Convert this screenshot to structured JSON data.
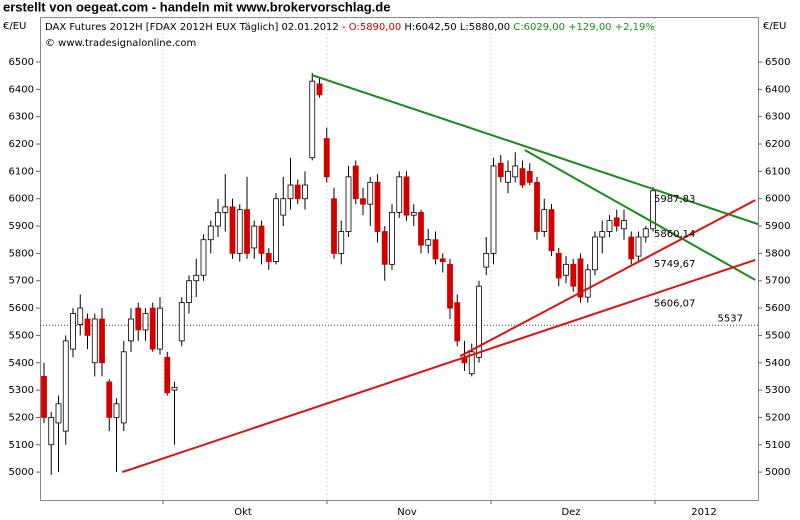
{
  "header": {
    "banner": "erstellt von oegeat.com - handeln mit www.brokervorschlag.de"
  },
  "chart_data": {
    "type": "candlestick",
    "legend": {
      "name": "DAX Futures 2012H [FDAX 2012H EUX  Täglich] 02.01.2012 -",
      "open": "O:5890,00",
      "high": "H:6042,50",
      "low": "L:5880,00",
      "close": "C:6029,00 +129,00 +2,19%"
    },
    "copyright": "© www.tradesignalonline.com",
    "y_unit": "€/EU",
    "xlabels": [
      "Okt",
      "Nov",
      "Dez",
      "2012"
    ],
    "ylim": [
      4898,
      6661
    ],
    "yticks": [
      5000,
      5100,
      5200,
      5300,
      5400,
      5500,
      5600,
      5700,
      5800,
      5900,
      6000,
      6100,
      6200,
      6300,
      6400,
      6500
    ],
    "up_color": "#ffffff",
    "down_color": "#d40000",
    "open": [
      5350,
      5100,
      5180,
      5150,
      5450,
      5540,
      5560,
      5400,
      5560,
      5330,
      5200,
      5180,
      5480,
      5600,
      5520,
      5600,
      5450,
      5420,
      5300,
      5480,
      5620,
      5700,
      5720,
      5850,
      5900,
      5950,
      5970,
      5800,
      5960,
      5820,
      5900,
      5800,
      5770,
      5940,
      6000,
      6050,
      6000,
      6150,
      6420,
      6220,
      6000,
      5800,
      5880,
      6120,
      6000,
      5980,
      6060,
      5880,
      5760,
      5950,
      6080,
      5940,
      5950,
      5830,
      5850,
      5780,
      5760,
      5620,
      5420,
      5360,
      5420,
      5750,
      5800,
      6130,
      6060,
      6080,
      6110,
      6100,
      6060,
      5880,
      5960,
      5800,
      5720,
      5760,
      5780,
      5640,
      5740,
      5860,
      5880,
      5930,
      5890,
      5860,
      5790,
      5860,
      5890
    ],
    "high": [
      5400,
      5220,
      5280,
      5500,
      5600,
      5650,
      5580,
      5580,
      5600,
      5340,
      5270,
      5480,
      5600,
      5620,
      5600,
      5620,
      5640,
      5440,
      5330,
      5640,
      5720,
      5780,
      5870,
      5920,
      6000,
      6090,
      6000,
      5980,
      6080,
      5920,
      5920,
      5820,
      6020,
      6080,
      6150,
      6070,
      6100,
      6460,
      6440,
      6260,
      6040,
      5920,
      6120,
      6140,
      6040,
      6080,
      6090,
      5900,
      5980,
      6100,
      6100,
      5980,
      5960,
      5890,
      5880,
      5800,
      5780,
      5650,
      5480,
      5470,
      5700,
      5860,
      6150,
      6160,
      6140,
      6170,
      6140,
      6130,
      6080,
      6000,
      5980,
      5820,
      5790,
      5780,
      5800,
      5760,
      5880,
      5920,
      5940,
      5960,
      5960,
      5880,
      5880,
      5900,
      6042.5
    ],
    "low": [
      5180,
      4990,
      5000,
      5100,
      5420,
      5500,
      5450,
      5350,
      5350,
      5150,
      5000,
      5150,
      5440,
      5480,
      5480,
      5440,
      5430,
      5280,
      5100,
      5460,
      5580,
      5640,
      5700,
      5800,
      5860,
      5880,
      5780,
      5770,
      5780,
      5780,
      5760,
      5740,
      5760,
      5900,
      5960,
      5980,
      5960,
      6140,
      6370,
      6060,
      5780,
      5760,
      5860,
      5980,
      5940,
      5900,
      5840,
      5700,
      5740,
      5930,
      5920,
      5900,
      5800,
      5800,
      5760,
      5730,
      5560,
      5460,
      5370,
      5350,
      5400,
      5720,
      5760,
      6060,
      6020,
      6060,
      6040,
      6050,
      5850,
      5860,
      5790,
      5680,
      5690,
      5660,
      5620,
      5620,
      5720,
      5800,
      5860,
      5880,
      5850,
      5760,
      5770,
      5840,
      5880
    ],
    "close": [
      5200,
      5200,
      5250,
      5480,
      5580,
      5600,
      5500,
      5560,
      5400,
      5200,
      5250,
      5440,
      5560,
      5520,
      5580,
      5450,
      5600,
      5290,
      5310,
      5620,
      5700,
      5720,
      5850,
      5900,
      5950,
      5970,
      5800,
      5960,
      5800,
      5900,
      5800,
      5770,
      6000,
      6000,
      6050,
      6000,
      6050,
      6430,
      6380,
      6080,
      5800,
      5880,
      6080,
      6000,
      5980,
      6060,
      5880,
      5760,
      5950,
      6080,
      5940,
      5950,
      5830,
      5850,
      5780,
      5770,
      5600,
      5480,
      5400,
      5440,
      5680,
      5800,
      6120,
      6080,
      6100,
      6120,
      6050,
      6060,
      5880,
      5960,
      5810,
      5710,
      5760,
      5680,
      5640,
      5740,
      5860,
      5880,
      5920,
      5900,
      5920,
      5780,
      5860,
      5890,
      6029
    ],
    "trendlines": [
      {
        "color": "#1a8a1a",
        "x": [
          37,
          98.5
        ],
        "y": [
          6452,
          5907
        ]
      },
      {
        "color": "#1a8a1a",
        "x": [
          66.3,
          98.1
        ],
        "y": [
          6178,
          5703
        ]
      },
      {
        "color": "#e01010",
        "x": [
          10.8,
          98.1
        ],
        "y": [
          5000,
          5776
        ]
      },
      {
        "color": "#e01010",
        "x": [
          57.4,
          98.1
        ],
        "y": [
          5424,
          5995
        ]
      }
    ],
    "level_labels": [
      {
        "value": 5987.83,
        "label": "5987,83",
        "color": "#1a8a1a"
      },
      {
        "value": 5860.14,
        "label": "5860,14",
        "color": "#1a8a1a"
      },
      {
        "value": 5749.67,
        "label": "5749,67",
        "color": "#e01010"
      },
      {
        "value": 5606.07,
        "label": "5606,07",
        "color": "#e01010"
      }
    ],
    "hline": {
      "value": 5537,
      "label": "5537",
      "color": "#000080"
    }
  }
}
